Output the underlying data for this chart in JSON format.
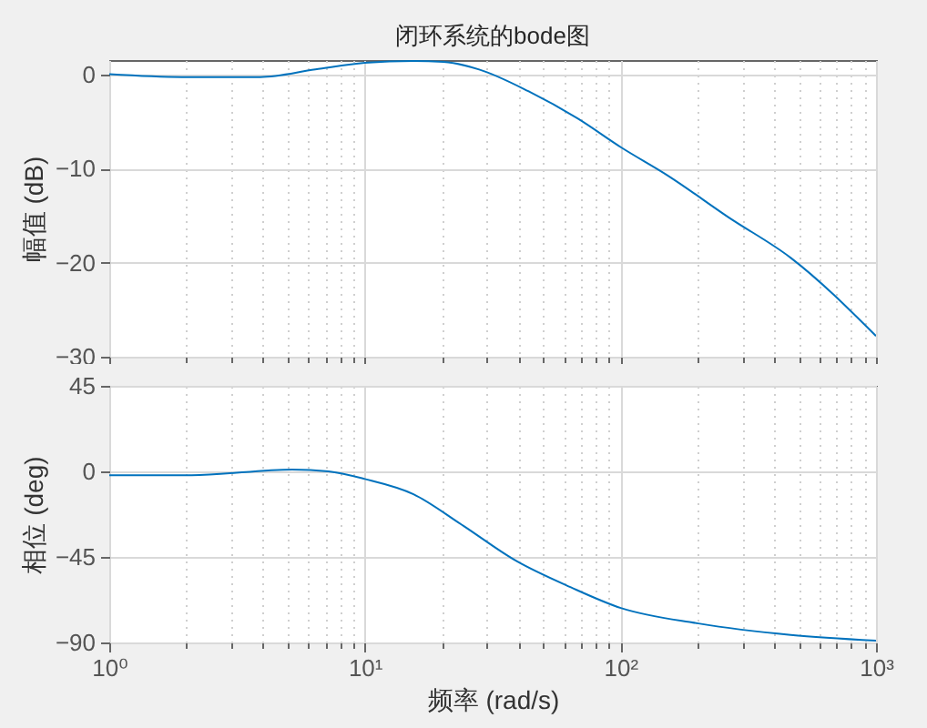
{
  "chart_data": [
    {
      "type": "line",
      "title": "闭环系统的bode图",
      "ylabel": "幅值 (dB)",
      "xlim": [
        1,
        1000
      ],
      "ylim": [
        -30,
        1.5
      ],
      "log": "x",
      "grid": true,
      "tick_labels": "y",
      "xticks": [
        {
          "value": 1,
          "label": null
        },
        {
          "value": 2,
          "label": null
        },
        {
          "value": 3,
          "label": null
        },
        {
          "value": 4,
          "label": null
        },
        {
          "value": 5,
          "label": null
        },
        {
          "value": 6,
          "label": null
        },
        {
          "value": 7,
          "label": null
        },
        {
          "value": 8,
          "label": null
        },
        {
          "value": 9,
          "label": null
        },
        {
          "value": 10,
          "label": null
        },
        {
          "value": 20,
          "label": null
        },
        {
          "value": 30,
          "label": null
        },
        {
          "value": 40,
          "label": null
        },
        {
          "value": 50,
          "label": null
        },
        {
          "value": 60,
          "label": null
        },
        {
          "value": 70,
          "label": null
        },
        {
          "value": 80,
          "label": null
        },
        {
          "value": 90,
          "label": null
        },
        {
          "value": 100,
          "label": null
        },
        {
          "value": 200,
          "label": null
        },
        {
          "value": 300,
          "label": null
        },
        {
          "value": 400,
          "label": null
        },
        {
          "value": 500,
          "label": null
        },
        {
          "value": 600,
          "label": null
        },
        {
          "value": 700,
          "label": null
        },
        {
          "value": 800,
          "label": null
        },
        {
          "value": 900,
          "label": null
        },
        {
          "value": 1000,
          "label": null
        }
      ],
      "yticks": [
        -30,
        -20,
        -10,
        0
      ],
      "series": [
        {
          "color": "#0072bd",
          "x": [
            1,
            1.92,
            3.9,
            6.4,
            10,
            15.5,
            20.3,
            28,
            43.6,
            68,
            101,
            154,
            265,
            464,
            1000
          ],
          "values": [
            0,
            -0.3,
            -0.3,
            0.5,
            1.2,
            1.4,
            1.3,
            0.5,
            -1.8,
            -4.7,
            -7.8,
            -10.8,
            -15.2,
            -19.5,
            -27.8
          ]
        }
      ]
    },
    {
      "type": "line",
      "ylabel": "相位 (deg)",
      "xlabel": "频率  (rad/s)",
      "xlim": [
        1,
        1000
      ],
      "ylim": [
        -90,
        45
      ],
      "log": "x",
      "grid": true,
      "xticks": [
        {
          "value": 1,
          "label": "10⁰"
        },
        {
          "value": 2,
          "label": null
        },
        {
          "value": 3,
          "label": null
        },
        {
          "value": 4,
          "label": null
        },
        {
          "value": 5,
          "label": null
        },
        {
          "value": 6,
          "label": null
        },
        {
          "value": 7,
          "label": null
        },
        {
          "value": 8,
          "label": null
        },
        {
          "value": 9,
          "label": null
        },
        {
          "value": 10,
          "label": "10¹"
        },
        {
          "value": 20,
          "label": null
        },
        {
          "value": 30,
          "label": null
        },
        {
          "value": 40,
          "label": null
        },
        {
          "value": 50,
          "label": null
        },
        {
          "value": 60,
          "label": null
        },
        {
          "value": 70,
          "label": null
        },
        {
          "value": 80,
          "label": null
        },
        {
          "value": 90,
          "label": null
        },
        {
          "value": 100,
          "label": "10²"
        },
        {
          "value": 200,
          "label": null
        },
        {
          "value": 300,
          "label": null
        },
        {
          "value": 400,
          "label": null
        },
        {
          "value": 500,
          "label": null
        },
        {
          "value": 600,
          "label": null
        },
        {
          "value": 700,
          "label": null
        },
        {
          "value": 800,
          "label": null
        },
        {
          "value": 900,
          "label": null
        },
        {
          "value": 1000,
          "label": "10³"
        }
      ],
      "yticks": [
        -90,
        -45,
        0,
        45
      ],
      "series": [
        {
          "color": "#0072bd",
          "x": [
            1,
            2.1,
            5.2,
            7.2,
            10,
            15.5,
            23.9,
            39,
            64,
            101,
            202,
            464,
            1000
          ],
          "values": [
            -2,
            -2,
            1,
            0,
            -4,
            -12,
            -28,
            -47,
            -61,
            -72,
            -80,
            -86,
            -89
          ]
        }
      ]
    }
  ]
}
